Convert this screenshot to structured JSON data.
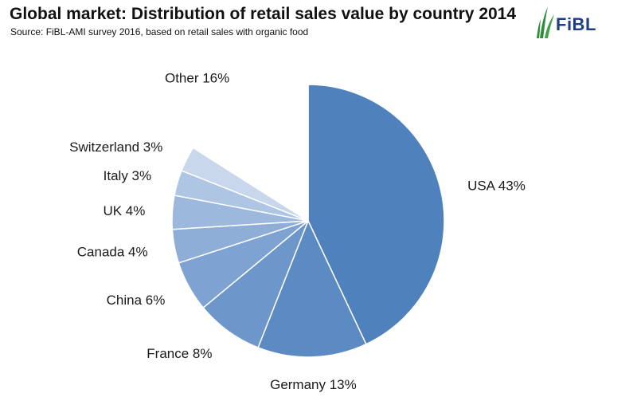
{
  "header": {
    "title": "Global market: Distribution of retail sales value by country 2014",
    "subtitle": "Source: FiBL-AMI survey 2016, based on retail sales with organic food"
  },
  "logo": {
    "text": "FiBL"
  },
  "chart_data": {
    "type": "pie",
    "labels": [
      "USA",
      "Germany",
      "France",
      "China",
      "Canada",
      "UK",
      "Italy",
      "Switzerland",
      "Other"
    ],
    "values": [
      43,
      13,
      8,
      6,
      4,
      4,
      3,
      3,
      16
    ],
    "display_labels": [
      "USA 43%",
      "Germany 13%",
      "France 8%",
      "China 6%",
      "Canada 4%",
      "UK 4%",
      "Italy 3%",
      "Switzerland 3%",
      "Other 16%"
    ],
    "colors": [
      "#4f81bd",
      "#5c8bc4",
      "#6d97cb",
      "#7ea3d2",
      "#8eaed7",
      "#9cb8dc",
      "#aec5e3",
      "#c8d7ec",
      "#ffffff"
    ],
    "start_angle": "12 o'clock",
    "direction": "clockwise",
    "legend": "none"
  }
}
